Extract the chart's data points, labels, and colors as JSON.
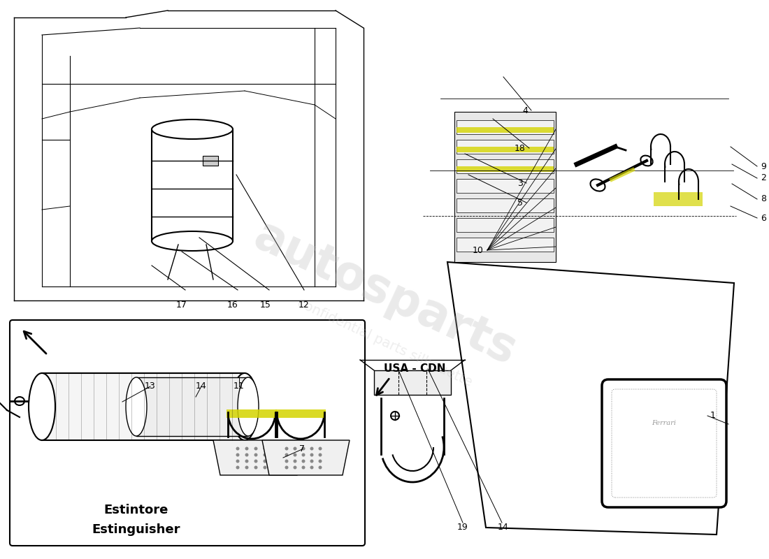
{
  "bg_color": "#ffffff",
  "line_color": "#000000",
  "highlight_yellow": "#d4d400",
  "label_color": "#000000",
  "estintore": "Estintore",
  "estinguisher": "Estinguisher",
  "usa_cdn": "USA - CDN",
  "ferrari_text": "Ferrari",
  "watermark1": "autosparts",
  "watermark2": "confidential parts silhouette"
}
